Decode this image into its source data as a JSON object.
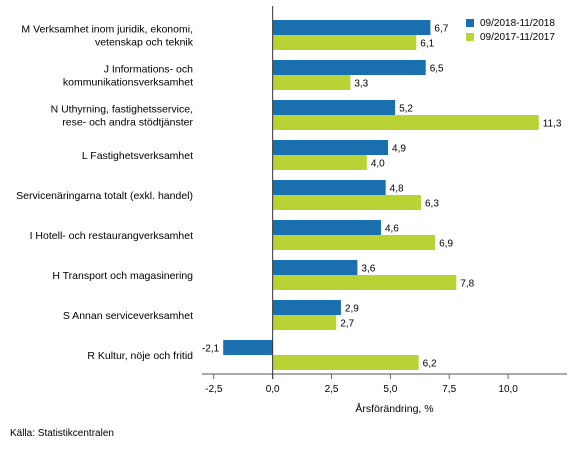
{
  "chart_data": {
    "type": "bar",
    "orientation": "horizontal",
    "categories": [
      "M Verksamhet inom juridik, ekonomi,\nvetenskap och teknik",
      "J Informations- och\nkommunikationsverksamhet",
      "N Uthyrning, fastighetsservice,\nrese- och andra stödtjänster",
      "L Fastighetsverksamhet",
      "Servicenäringarna totalt (exkl. handel)",
      "I Hotell- och restaurangverksamhet",
      "H Transport och magasinering",
      "S Annan serviceverksamhet",
      "R Kultur, nöje och fritid"
    ],
    "series": [
      {
        "name": "09/2018-11/2018",
        "values": [
          6.7,
          6.5,
          5.2,
          4.9,
          4.8,
          4.6,
          3.6,
          2.9,
          -2.1
        ],
        "labels": [
          "6,7",
          "6,5",
          "5,2",
          "4,9",
          "4,8",
          "4,6",
          "3,6",
          "2,9",
          "-2,1"
        ]
      },
      {
        "name": "09/2017-11/2017",
        "values": [
          6.1,
          3.3,
          11.3,
          4.0,
          6.3,
          6.9,
          7.8,
          2.7,
          6.2
        ],
        "labels": [
          "6,1",
          "3,3",
          "11,3",
          "4,0",
          "6,3",
          "6,9",
          "7,8",
          "2,7",
          "6,2"
        ]
      }
    ],
    "xlim": [
      -3.0,
      12.5
    ],
    "xticks": [
      -2.5,
      0.0,
      2.5,
      5.0,
      7.5,
      10.0
    ],
    "xtick_labels": [
      "-2,5",
      "0,0",
      "2,5",
      "5,0",
      "7,5",
      "10,0"
    ],
    "xlabel": "Årsförändring, %",
    "legend_position": "top-right",
    "colors": {
      "series1": "#1a6faf",
      "series2": "#b9d334",
      "axis": "#888888"
    }
  },
  "source": "Källa: Statistikcentralen"
}
